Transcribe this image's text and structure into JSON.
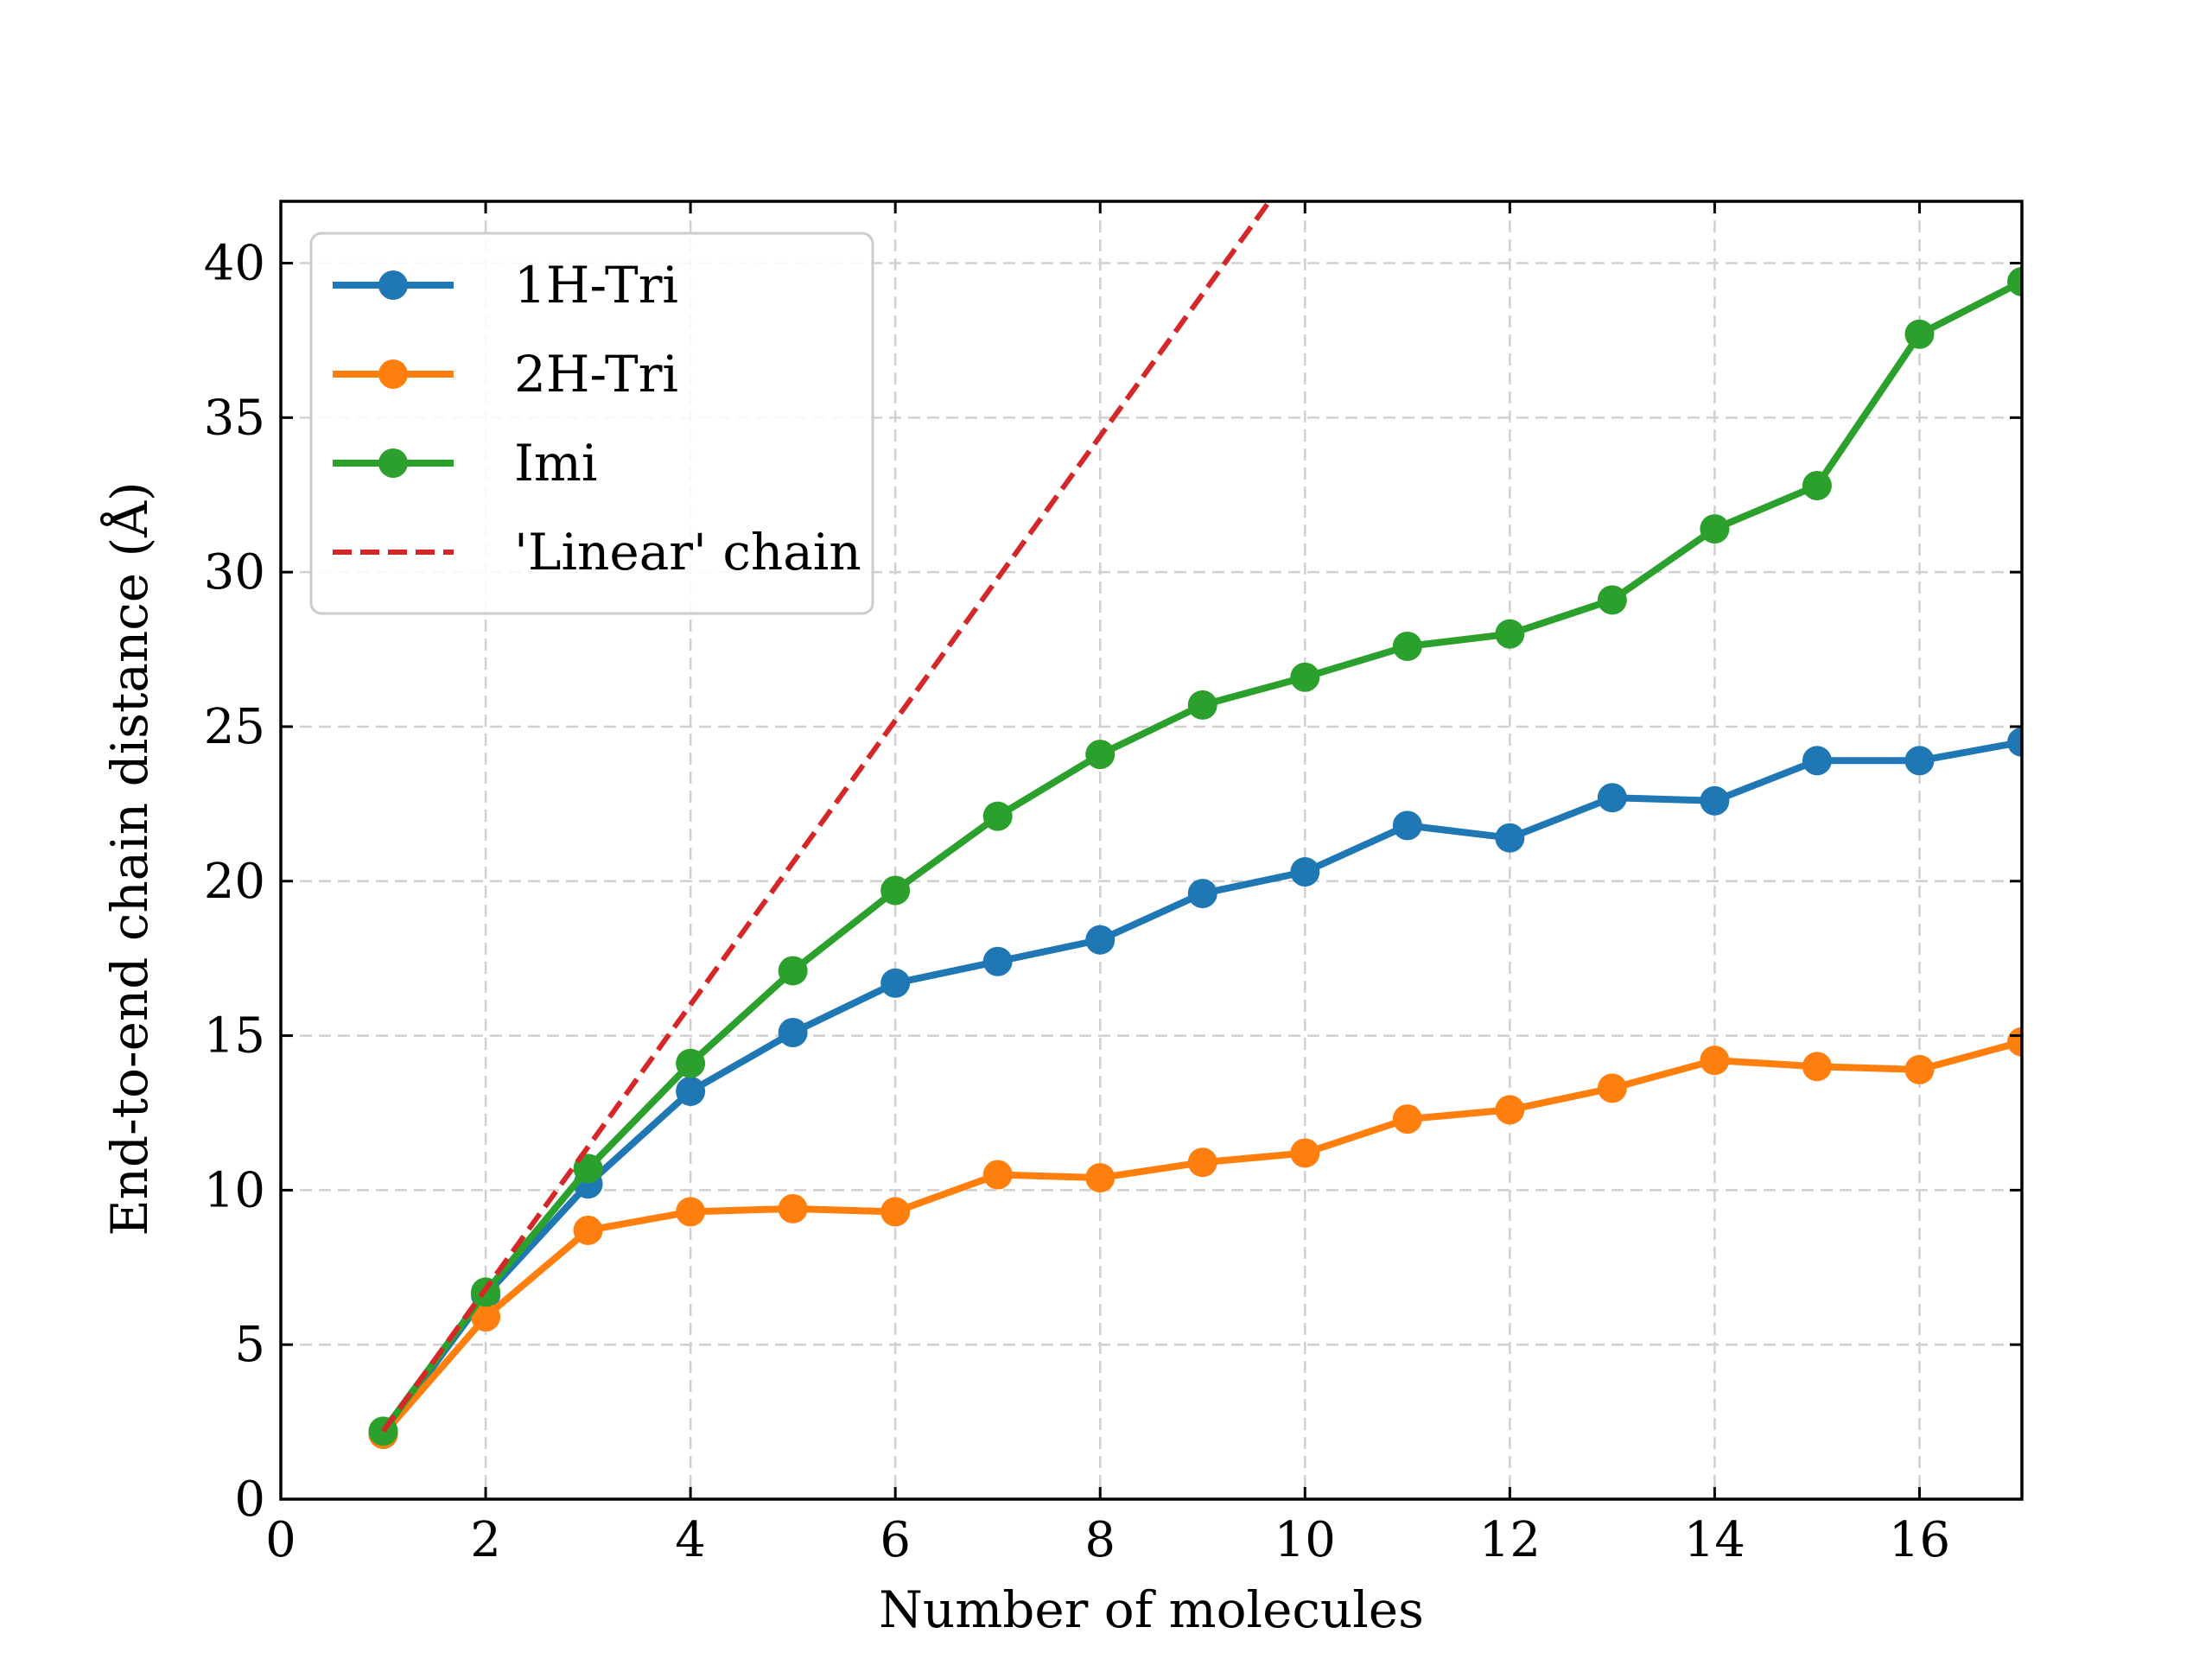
{
  "chart_data": {
    "type": "line",
    "title": "",
    "xlabel": "Number of molecules",
    "ylabel": "End-to-end chain distance (Å)",
    "xlim": [
      0,
      17
    ],
    "ylim": [
      0,
      42
    ],
    "xticks": [
      0,
      2,
      4,
      6,
      8,
      10,
      12,
      14,
      16
    ],
    "yticks": [
      0,
      5,
      10,
      15,
      20,
      25,
      30,
      35,
      40
    ],
    "grid": true,
    "legend_position": "top-left",
    "x": [
      1,
      2,
      3,
      4,
      5,
      6,
      7,
      8,
      9,
      10,
      11,
      12,
      13,
      14,
      15,
      16,
      17
    ],
    "series": [
      {
        "name": "1H-Tri",
        "color": "#1f77b4",
        "style": "solid",
        "marker": "circle",
        "values": [
          2.1,
          6.6,
          10.2,
          13.2,
          15.1,
          16.7,
          17.4,
          18.1,
          19.6,
          20.3,
          21.8,
          21.4,
          22.7,
          22.6,
          23.9,
          23.9,
          24.5
        ]
      },
      {
        "name": "2H-Tri",
        "color": "#ff7f0e",
        "style": "solid",
        "marker": "circle",
        "values": [
          2.1,
          5.9,
          8.7,
          9.3,
          9.4,
          9.3,
          10.5,
          10.4,
          10.9,
          11.2,
          12.3,
          12.6,
          13.3,
          14.2,
          14.0,
          13.9,
          14.8
        ]
      },
      {
        "name": "Imi",
        "color": "#2ca02c",
        "style": "solid",
        "marker": "circle",
        "values": [
          2.2,
          6.7,
          10.7,
          14.1,
          17.1,
          19.7,
          22.1,
          24.1,
          25.7,
          26.6,
          27.6,
          28.0,
          29.1,
          31.4,
          32.8,
          37.7,
          39.4
        ]
      },
      {
        "name": "'Linear' chain",
        "color": "#d62728",
        "style": "dashed",
        "marker": "none",
        "x": [
          1,
          2,
          3,
          4,
          5,
          6,
          7,
          8,
          9,
          10
        ],
        "values": [
          2.2,
          6.8,
          11.4,
          16.0,
          20.6,
          25.2,
          29.8,
          34.4,
          39.0,
          43.6
        ]
      }
    ]
  }
}
